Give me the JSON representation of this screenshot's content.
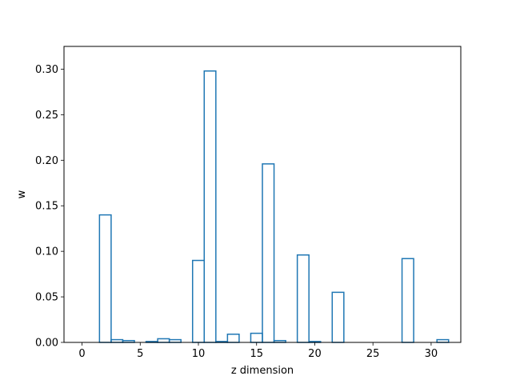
{
  "chart_data": {
    "type": "bar",
    "style": "step-histogram",
    "title": "",
    "xlabel": "z dimension",
    "ylabel": "w",
    "xlim": [
      -1.55,
      32.55
    ],
    "ylim": [
      0,
      0.325
    ],
    "grid": false,
    "legend": "none",
    "series_color": "#1f77b4",
    "xticks": [
      0,
      5,
      10,
      15,
      20,
      25,
      30
    ],
    "xtick_labels": [
      "0",
      "5",
      "10",
      "15",
      "20",
      "25",
      "30"
    ],
    "yticks": [
      0.0,
      0.05,
      0.1,
      0.15,
      0.2,
      0.25,
      0.3
    ],
    "ytick_labels": [
      "0.00",
      "0.05",
      "0.10",
      "0.15",
      "0.20",
      "0.25",
      "0.30"
    ],
    "categories": [
      0,
      1,
      2,
      3,
      4,
      5,
      6,
      7,
      8,
      9,
      10,
      11,
      12,
      13,
      14,
      15,
      16,
      17,
      18,
      19,
      20,
      21,
      22,
      23,
      24,
      25,
      26,
      27,
      28,
      29,
      30,
      31
    ],
    "values": [
      0.0,
      0.0,
      0.14,
      0.003,
      0.002,
      0.0,
      0.001,
      0.004,
      0.003,
      0.0,
      0.09,
      0.298,
      0.001,
      0.009,
      0.0,
      0.01,
      0.196,
      0.002,
      0.0,
      0.096,
      0.001,
      0.0,
      0.055,
      0.0,
      0.0,
      0.0,
      0.0,
      0.0,
      0.092,
      0.0,
      0.0,
      0.003
    ]
  }
}
